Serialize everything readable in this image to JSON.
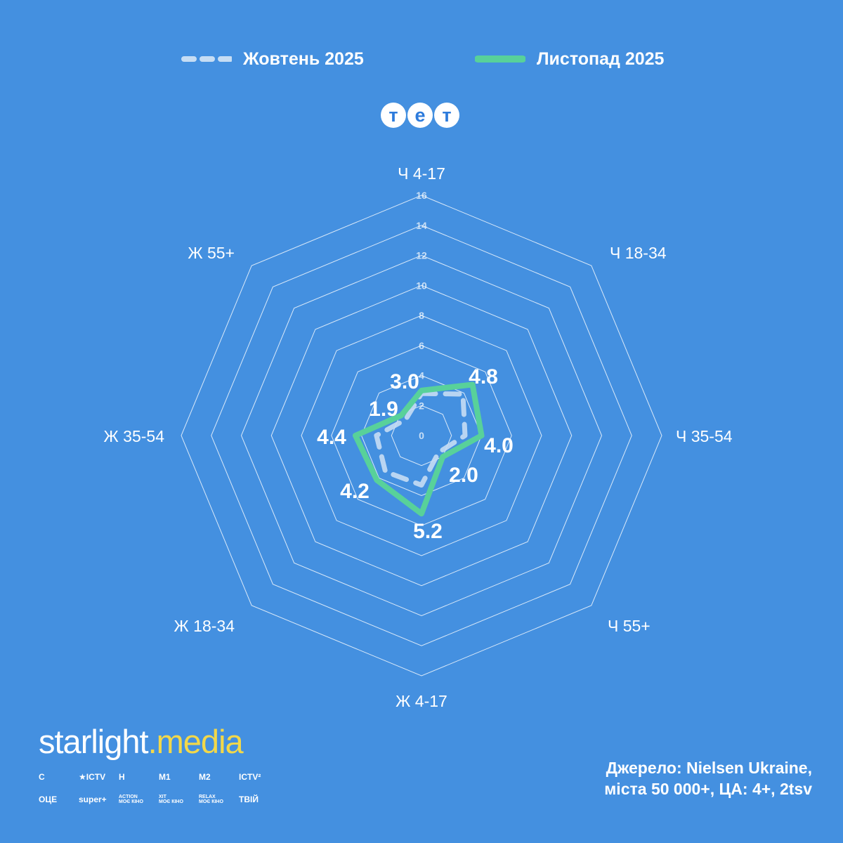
{
  "legend": {
    "october_label": "Жовтень 2025",
    "november_label": "Листопад 2025"
  },
  "channel": {
    "logo_letters": [
      "т",
      "е",
      "т"
    ]
  },
  "colors": {
    "background": "#4490e0",
    "october": "#c6ddf4",
    "november": "#58d19a",
    "grid": "#ffffff",
    "brand_accent": "#f2d84a"
  },
  "chart_data": {
    "type": "radar",
    "categories": [
      "Ч 4-17",
      "Ч 18-34",
      "Ч 35-54",
      "Ч 55+",
      "Ж 4-17",
      "Ж 18-34",
      "Ж 35-54",
      "Ж 55+"
    ],
    "radial_ticks": [
      "0",
      "2",
      "4",
      "6",
      "8",
      "10",
      "12",
      "14",
      "16"
    ],
    "rmax": 16,
    "series": [
      {
        "name": "Жовтень 2025",
        "style": "dashed",
        "values": [
          2.8,
          3.9,
          2.9,
          1.6,
          3.3,
          3.4,
          3.0,
          1.5
        ]
      },
      {
        "name": "Листопад 2025",
        "style": "solid",
        "values": [
          3.0,
          4.8,
          4.0,
          2.0,
          5.2,
          4.2,
          4.4,
          1.9
        ]
      }
    ],
    "data_labels": [
      "3.0",
      "4.8",
      "4.0",
      "2.0",
      "5.2",
      "4.2",
      "4.4",
      "1.9"
    ]
  },
  "brand": {
    "name_part1": "starlight",
    "name_dot": ".",
    "name_part2": "media",
    "channels": [
      {
        "label": "С"
      },
      {
        "label": "★ICTV"
      },
      {
        "label": "Н"
      },
      {
        "label": "М1"
      },
      {
        "label": "М2"
      },
      {
        "label": "ICTV²"
      },
      {
        "label": "ОЦЕ"
      },
      {
        "label": "super+"
      },
      {
        "top": "ACTION",
        "main": "МОЄ КІНО"
      },
      {
        "top": "ХІТ",
        "main": "МОЄ КІНО"
      },
      {
        "top": "RELAX",
        "main": "МОЄ КІНО"
      },
      {
        "label": "ТВІЙ"
      }
    ]
  },
  "source": {
    "line1": "Джерело: Nielsen Ukraine,",
    "line2": "міста 50 000+, ЦА: 4+, 2tsv"
  }
}
